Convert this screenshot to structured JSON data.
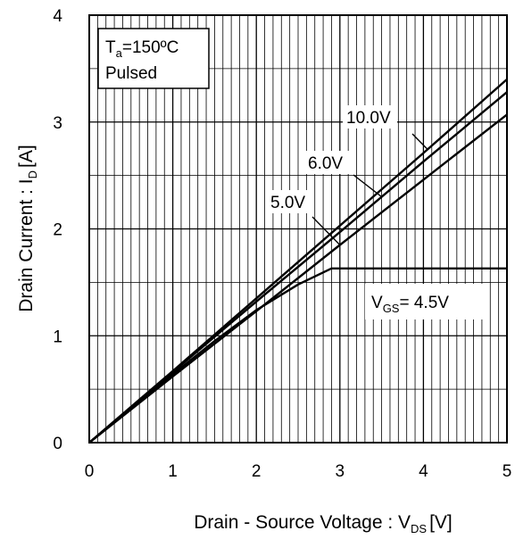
{
  "chart_data": {
    "type": "line",
    "xlabel": "Drain - Source Voltage : V",
    "xlabel_sub": "DS",
    "xlabel_unit": "[V]",
    "ylabel": "Drain Current : I",
    "ylabel_sub": "D",
    "ylabel_unit": "[A]",
    "xlim": [
      0,
      5
    ],
    "ylim": [
      0,
      4
    ],
    "xticks": [
      "0",
      "1",
      "2",
      "3",
      "4",
      "5"
    ],
    "yticks": [
      "0",
      "1",
      "2",
      "3",
      "4"
    ],
    "grid": "on",
    "condition": {
      "temp_prefix": "T",
      "temp_sub": "a",
      "temp_value": "=150ºC",
      "mode": "Pulsed"
    },
    "series": [
      {
        "name": "10.0V",
        "x": [
          0,
          1,
          2,
          3,
          4,
          5
        ],
        "y": [
          0,
          0.67,
          1.35,
          2.03,
          2.71,
          3.4
        ]
      },
      {
        "name": "6.0V",
        "x": [
          0,
          1,
          2,
          3,
          4,
          5
        ],
        "y": [
          0,
          0.66,
          1.32,
          1.97,
          2.63,
          3.28
        ]
      },
      {
        "name": "5.0V",
        "x": [
          0,
          1,
          2,
          3,
          4,
          5
        ],
        "y": [
          0,
          0.62,
          1.23,
          1.85,
          2.46,
          3.07
        ]
      },
      {
        "name": "4.5V",
        "x": [
          0,
          0.5,
          1,
          1.5,
          2,
          2.5,
          2.9,
          3.5,
          4,
          5
        ],
        "y": [
          0,
          0.32,
          0.64,
          0.95,
          1.24,
          1.48,
          1.63,
          1.63,
          1.63,
          1.63
        ]
      }
    ],
    "annotations": {
      "vgs_prefix": "V",
      "vgs_sub": "GS",
      "vgs_suffix": "= 4.5V"
    }
  }
}
